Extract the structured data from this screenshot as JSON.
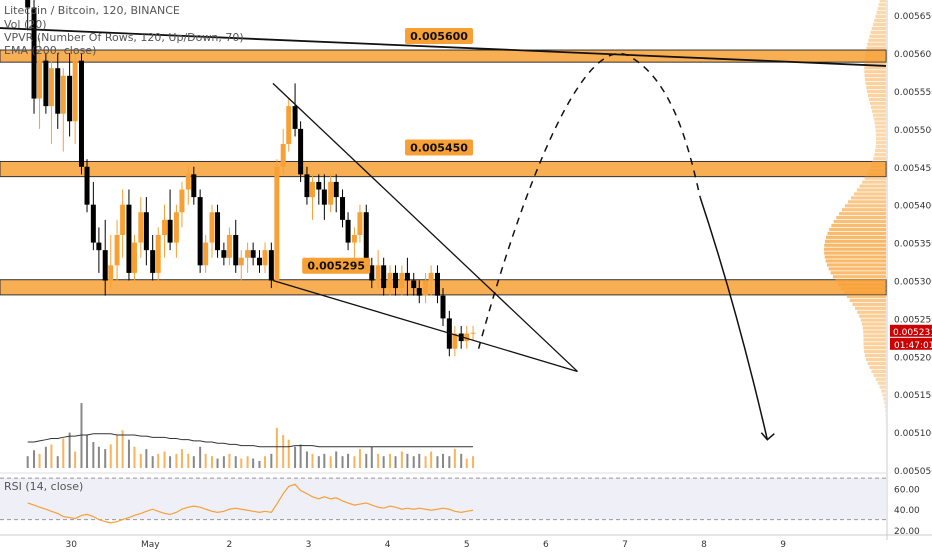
{
  "header": {
    "symbol_line": "Litecoin / Bitcoin, 120, BINANCE",
    "vol_label": "Vol (20)",
    "vpvr_label": "VPVR (Number Of Rows, 120, Up/Down, 70)",
    "ema_label": "EMA (200, close)",
    "rsi_label": "RSI (14, close)"
  },
  "colors": {
    "up": "#f7a035",
    "down": "#000000",
    "zone": "#f7a035",
    "price_badge": "#cc0000"
  },
  "chart_data": {
    "type": "candlestick",
    "ylim": [
      0.00505,
      0.00567
    ],
    "price_ticks": [
      "0.005650",
      "0.005600",
      "0.005550",
      "0.005500",
      "0.005450",
      "0.005400",
      "0.005350",
      "0.005300",
      "0.005250",
      "0.005200",
      "0.005150",
      "0.005100",
      "0.005050"
    ],
    "x_range": [
      -0.9,
      10.3
    ],
    "x_ticks": [
      {
        "x": 0,
        "label": "30"
      },
      {
        "x": 1,
        "label": "May"
      },
      {
        "x": 2,
        "label": "2"
      },
      {
        "x": 3,
        "label": "3"
      },
      {
        "x": 4,
        "label": "4"
      },
      {
        "x": 5,
        "label": "5"
      },
      {
        "x": 6,
        "label": "6"
      },
      {
        "x": 7,
        "label": "7"
      },
      {
        "x": 8,
        "label": "8"
      },
      {
        "x": 9,
        "label": "9"
      }
    ],
    "zones": [
      {
        "low": 0.005588,
        "high": 0.005604,
        "label": "0.005600",
        "label_x": 4.65
      },
      {
        "low": 0.005437,
        "high": 0.005457,
        "label": "0.005450",
        "label_x": 4.65
      },
      {
        "low": 0.005281,
        "high": 0.005301,
        "label": "0.005295",
        "label_x": 3.35
      }
    ],
    "last_price": "0.005231",
    "countdown": "01:47:01",
    "candles": [
      {
        "x": -0.55,
        "o": 0.0057,
        "h": 0.00572,
        "l": 0.00563,
        "c": 0.00566
      },
      {
        "x": -0.47,
        "o": 0.00566,
        "h": 0.00568,
        "l": 0.00552,
        "c": 0.00554
      },
      {
        "x": -0.4,
        "o": 0.00554,
        "h": 0.00562,
        "l": 0.0055,
        "c": 0.00559
      },
      {
        "x": -0.32,
        "o": 0.00559,
        "h": 0.0056,
        "l": 0.00552,
        "c": 0.00553
      },
      {
        "x": -0.25,
        "o": 0.00553,
        "h": 0.00559,
        "l": 0.00548,
        "c": 0.00558
      },
      {
        "x": -0.17,
        "o": 0.00558,
        "h": 0.0056,
        "l": 0.0055,
        "c": 0.00552
      },
      {
        "x": -0.1,
        "o": 0.00552,
        "h": 0.00558,
        "l": 0.00547,
        "c": 0.00557
      },
      {
        "x": -0.02,
        "o": 0.00557,
        "h": 0.0056,
        "l": 0.00549,
        "c": 0.00551
      },
      {
        "x": 0.05,
        "o": 0.00551,
        "h": 0.0056,
        "l": 0.00548,
        "c": 0.00559
      },
      {
        "x": 0.13,
        "o": 0.00559,
        "h": 0.0056,
        "l": 0.00544,
        "c": 0.00545
      },
      {
        "x": 0.2,
        "o": 0.00545,
        "h": 0.00546,
        "l": 0.00539,
        "c": 0.0054
      },
      {
        "x": 0.28,
        "o": 0.0054,
        "h": 0.00543,
        "l": 0.00534,
        "c": 0.00535
      },
      {
        "x": 0.35,
        "o": 0.00535,
        "h": 0.00537,
        "l": 0.00531,
        "c": 0.00534
      },
      {
        "x": 0.43,
        "o": 0.00534,
        "h": 0.00538,
        "l": 0.00528,
        "c": 0.0053
      },
      {
        "x": 0.5,
        "o": 0.0053,
        "h": 0.00536,
        "l": 0.00529,
        "c": 0.00532
      },
      {
        "x": 0.58,
        "o": 0.00532,
        "h": 0.00538,
        "l": 0.0053,
        "c": 0.00536
      },
      {
        "x": 0.65,
        "o": 0.00536,
        "h": 0.00542,
        "l": 0.00533,
        "c": 0.0054
      },
      {
        "x": 0.73,
        "o": 0.0054,
        "h": 0.00542,
        "l": 0.0053,
        "c": 0.00531
      },
      {
        "x": 0.8,
        "o": 0.00531,
        "h": 0.00536,
        "l": 0.0053,
        "c": 0.00535
      },
      {
        "x": 0.88,
        "o": 0.00535,
        "h": 0.00541,
        "l": 0.00533,
        "c": 0.00539
      },
      {
        "x": 0.95,
        "o": 0.00539,
        "h": 0.00541,
        "l": 0.00532,
        "c": 0.00534
      },
      {
        "x": 1.03,
        "o": 0.00534,
        "h": 0.00536,
        "l": 0.0053,
        "c": 0.00531
      },
      {
        "x": 1.1,
        "o": 0.00531,
        "h": 0.00537,
        "l": 0.0053,
        "c": 0.00536
      },
      {
        "x": 1.18,
        "o": 0.00536,
        "h": 0.0054,
        "l": 0.00533,
        "c": 0.00538
      },
      {
        "x": 1.25,
        "o": 0.00538,
        "h": 0.00542,
        "l": 0.00534,
        "c": 0.00535
      },
      {
        "x": 1.33,
        "o": 0.00535,
        "h": 0.0054,
        "l": 0.00533,
        "c": 0.00539
      },
      {
        "x": 1.4,
        "o": 0.00539,
        "h": 0.00543,
        "l": 0.00537,
        "c": 0.00542
      },
      {
        "x": 1.48,
        "o": 0.00542,
        "h": 0.00545,
        "l": 0.0054,
        "c": 0.00544
      },
      {
        "x": 1.55,
        "o": 0.00544,
        "h": 0.00545,
        "l": 0.0054,
        "c": 0.00541
      },
      {
        "x": 1.63,
        "o": 0.00541,
        "h": 0.00542,
        "l": 0.00531,
        "c": 0.00532
      },
      {
        "x": 1.7,
        "o": 0.00532,
        "h": 0.00536,
        "l": 0.00531,
        "c": 0.00535
      },
      {
        "x": 1.78,
        "o": 0.00535,
        "h": 0.0054,
        "l": 0.00533,
        "c": 0.00539
      },
      {
        "x": 1.85,
        "o": 0.00539,
        "h": 0.0054,
        "l": 0.00533,
        "c": 0.00534
      },
      {
        "x": 1.93,
        "o": 0.00534,
        "h": 0.00535,
        "l": 0.00532,
        "c": 0.00533
      },
      {
        "x": 2.0,
        "o": 0.00533,
        "h": 0.00537,
        "l": 0.00532,
        "c": 0.00536
      },
      {
        "x": 2.08,
        "o": 0.00536,
        "h": 0.00538,
        "l": 0.00531,
        "c": 0.00532
      },
      {
        "x": 2.15,
        "o": 0.00532,
        "h": 0.00534,
        "l": 0.0053,
        "c": 0.00533
      },
      {
        "x": 2.23,
        "o": 0.00533,
        "h": 0.00535,
        "l": 0.00531,
        "c": 0.00534
      },
      {
        "x": 2.3,
        "o": 0.00534,
        "h": 0.00535,
        "l": 0.00532,
        "c": 0.00533
      },
      {
        "x": 2.38,
        "o": 0.00533,
        "h": 0.00534,
        "l": 0.00531,
        "c": 0.00532
      },
      {
        "x": 2.45,
        "o": 0.00532,
        "h": 0.00535,
        "l": 0.00531,
        "c": 0.00534
      },
      {
        "x": 2.53,
        "o": 0.00534,
        "h": 0.00535,
        "l": 0.00529,
        "c": 0.0053
      },
      {
        "x": 2.6,
        "o": 0.0053,
        "h": 0.00546,
        "l": 0.00529,
        "c": 0.00545
      },
      {
        "x": 2.68,
        "o": 0.00545,
        "h": 0.0055,
        "l": 0.00544,
        "c": 0.00548
      },
      {
        "x": 2.75,
        "o": 0.00548,
        "h": 0.00554,
        "l": 0.00547,
        "c": 0.00553
      },
      {
        "x": 2.83,
        "o": 0.00553,
        "h": 0.00556,
        "l": 0.00549,
        "c": 0.0055
      },
      {
        "x": 2.9,
        "o": 0.0055,
        "h": 0.00551,
        "l": 0.00543,
        "c": 0.00544
      },
      {
        "x": 2.98,
        "o": 0.00544,
        "h": 0.00545,
        "l": 0.0054,
        "c": 0.00541
      },
      {
        "x": 3.05,
        "o": 0.00541,
        "h": 0.00544,
        "l": 0.00538,
        "c": 0.00543
      },
      {
        "x": 3.13,
        "o": 0.00543,
        "h": 0.00544,
        "l": 0.0054,
        "c": 0.00542
      },
      {
        "x": 3.2,
        "o": 0.00542,
        "h": 0.00544,
        "l": 0.00538,
        "c": 0.0054
      },
      {
        "x": 3.28,
        "o": 0.0054,
        "h": 0.00544,
        "l": 0.00539,
        "c": 0.00543
      },
      {
        "x": 3.35,
        "o": 0.00543,
        "h": 0.00544,
        "l": 0.00539,
        "c": 0.00541
      },
      {
        "x": 3.43,
        "o": 0.00541,
        "h": 0.00542,
        "l": 0.00537,
        "c": 0.00538
      },
      {
        "x": 3.5,
        "o": 0.00538,
        "h": 0.00539,
        "l": 0.00534,
        "c": 0.00535
      },
      {
        "x": 3.58,
        "o": 0.00535,
        "h": 0.00537,
        "l": 0.00533,
        "c": 0.00536
      },
      {
        "x": 3.65,
        "o": 0.00536,
        "h": 0.0054,
        "l": 0.00535,
        "c": 0.00539
      },
      {
        "x": 3.73,
        "o": 0.00539,
        "h": 0.0054,
        "l": 0.00531,
        "c": 0.00532
      },
      {
        "x": 3.8,
        "o": 0.00532,
        "h": 0.00533,
        "l": 0.00529,
        "c": 0.0053
      },
      {
        "x": 3.88,
        "o": 0.0053,
        "h": 0.00534,
        "l": 0.00529,
        "c": 0.00532
      },
      {
        "x": 3.95,
        "o": 0.00532,
        "h": 0.00533,
        "l": 0.00528,
        "c": 0.00529
      },
      {
        "x": 4.03,
        "o": 0.00529,
        "h": 0.00532,
        "l": 0.00528,
        "c": 0.00531
      },
      {
        "x": 4.1,
        "o": 0.00531,
        "h": 0.00532,
        "l": 0.00528,
        "c": 0.00529
      },
      {
        "x": 4.18,
        "o": 0.00529,
        "h": 0.00532,
        "l": 0.00528,
        "c": 0.00531
      },
      {
        "x": 4.25,
        "o": 0.00531,
        "h": 0.00533,
        "l": 0.00528,
        "c": 0.0053
      },
      {
        "x": 4.33,
        "o": 0.0053,
        "h": 0.00531,
        "l": 0.00528,
        "c": 0.00529
      },
      {
        "x": 4.4,
        "o": 0.00529,
        "h": 0.0053,
        "l": 0.00527,
        "c": 0.00528
      },
      {
        "x": 4.48,
        "o": 0.00528,
        "h": 0.00531,
        "l": 0.00527,
        "c": 0.0053
      },
      {
        "x": 4.55,
        "o": 0.0053,
        "h": 0.00532,
        "l": 0.00528,
        "c": 0.00531
      },
      {
        "x": 4.63,
        "o": 0.00531,
        "h": 0.00532,
        "l": 0.00527,
        "c": 0.00528
      },
      {
        "x": 4.7,
        "o": 0.00528,
        "h": 0.00529,
        "l": 0.00524,
        "c": 0.00525
      },
      {
        "x": 4.78,
        "o": 0.00525,
        "h": 0.00526,
        "l": 0.0052,
        "c": 0.00521
      },
      {
        "x": 4.85,
        "o": 0.00521,
        "h": 0.00524,
        "l": 0.0052,
        "c": 0.00523
      },
      {
        "x": 4.93,
        "o": 0.00523,
        "h": 0.00524,
        "l": 0.00521,
        "c": 0.00522
      },
      {
        "x": 5.0,
        "o": 0.00522,
        "h": 0.00524,
        "l": 0.00521,
        "c": 0.00523
      },
      {
        "x": 5.08,
        "o": 0.00523,
        "h": 0.00524,
        "l": 0.00522,
        "c": 0.005231
      }
    ],
    "volume": {
      "max": 100,
      "values": [
        10,
        15,
        12,
        18,
        20,
        10,
        25,
        30,
        14,
        55,
        28,
        22,
        18,
        16,
        20,
        28,
        32,
        24,
        18,
        12,
        16,
        10,
        12,
        14,
        10,
        12,
        16,
        12,
        10,
        18,
        12,
        10,
        8,
        10,
        12,
        10,
        8,
        10,
        8,
        6,
        10,
        12,
        34,
        28,
        24,
        18,
        20,
        14,
        12,
        10,
        12,
        10,
        14,
        10,
        12,
        10,
        16,
        12,
        18,
        12,
        10,
        12,
        10,
        14,
        12,
        10,
        12,
        10,
        14,
        10,
        12,
        10,
        16,
        12,
        8,
        10,
        6
      ],
      "ma": [
        22,
        22,
        23,
        24,
        25,
        25,
        26,
        27,
        27,
        28,
        28,
        29,
        29,
        29,
        29,
        28,
        28,
        28,
        28,
        27,
        27,
        26,
        26,
        26,
        25,
        25,
        24,
        24,
        23,
        23,
        22,
        22,
        21,
        21,
        20,
        20,
        19,
        19,
        19,
        18,
        18,
        18,
        18,
        18,
        18,
        19,
        19,
        19,
        19,
        18,
        18,
        18,
        18,
        18,
        18,
        18,
        18,
        18,
        18,
        18,
        18,
        18,
        18,
        18,
        18,
        18,
        18,
        18,
        18,
        18,
        18,
        18,
        18,
        18,
        18,
        18,
        18
      ]
    },
    "rsi": {
      "ylim": [
        20,
        72
      ],
      "ticks": [
        60,
        40,
        20
      ],
      "tick_labels": [
        "60.00",
        "40.00",
        "20.00"
      ],
      "band": [
        30,
        70
      ],
      "values": [
        46,
        44,
        42,
        40,
        38,
        36,
        33,
        32,
        31,
        34,
        35,
        33,
        30,
        28,
        27,
        28,
        30,
        32,
        34,
        36,
        38,
        40,
        38,
        36,
        35,
        37,
        40,
        42,
        43,
        42,
        40,
        38,
        37,
        38,
        40,
        41,
        40,
        39,
        38,
        37,
        38,
        37,
        45,
        55,
        62,
        64,
        58,
        55,
        52,
        50,
        52,
        50,
        51,
        48,
        46,
        44,
        45,
        46,
        44,
        42,
        41,
        43,
        42,
        40,
        41,
        40,
        41,
        40,
        39,
        40,
        41,
        40,
        38,
        37,
        38,
        39,
        40
      ]
    }
  }
}
